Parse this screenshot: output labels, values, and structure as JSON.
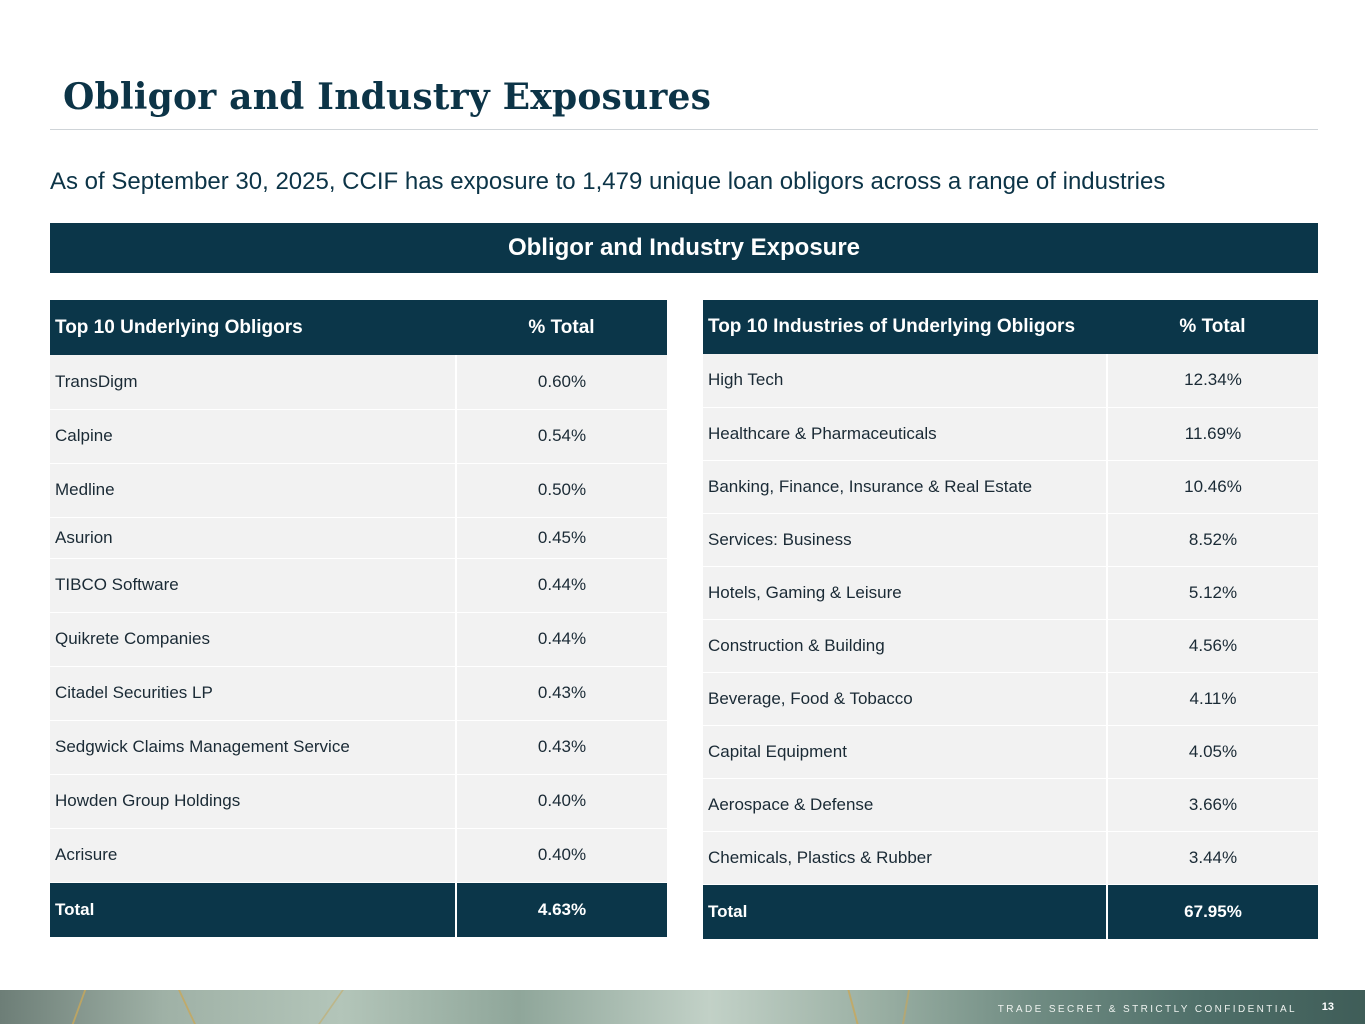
{
  "page": {
    "title": "Obligor and Industry Exposures",
    "subtitle": "As of September 30, 2025, CCIF has exposure to 1,479 unique loan obligors across a range of industries",
    "section_header": "Obligor and Industry Exposure"
  },
  "obligors": {
    "col_name": "Top 10 Underlying Obligors",
    "col_pct": "% Total",
    "rows": [
      {
        "name": "TransDigm",
        "pct": "0.60%"
      },
      {
        "name": "Calpine",
        "pct": "0.54%"
      },
      {
        "name": "Medline",
        "pct": "0.50%"
      },
      {
        "name": "Asurion",
        "pct": "0.45%"
      },
      {
        "name": "TIBCO Software",
        "pct": "0.44%"
      },
      {
        "name": "Quikrete Companies",
        "pct": "0.44%"
      },
      {
        "name": "Citadel Securities LP",
        "pct": "0.43%"
      },
      {
        "name": "Sedgwick Claims Management Service",
        "pct": "0.43%"
      },
      {
        "name": "Howden Group Holdings",
        "pct": "0.40%"
      },
      {
        "name": "Acrisure",
        "pct": "0.40%"
      }
    ],
    "total_label": "Total",
    "total_pct": "4.63%"
  },
  "industries": {
    "col_name": "Top 10 Industries of Underlying Obligors",
    "col_pct": "% Total",
    "rows": [
      {
        "name": "High Tech",
        "pct": "12.34%"
      },
      {
        "name": "Healthcare & Pharmaceuticals",
        "pct": "11.69%"
      },
      {
        "name": "Banking, Finance, Insurance & Real Estate",
        "pct": "10.46%"
      },
      {
        "name": "Services: Business",
        "pct": "8.52%"
      },
      {
        "name": "Hotels, Gaming & Leisure",
        "pct": "5.12%"
      },
      {
        "name": "Construction & Building",
        "pct": "4.56%"
      },
      {
        "name": "Beverage, Food & Tobacco",
        "pct": "4.11%"
      },
      {
        "name": "Capital Equipment",
        "pct": "4.05%"
      },
      {
        "name": "Aerospace & Defense",
        "pct": "3.66%"
      },
      {
        "name": "Chemicals, Plastics & Rubber",
        "pct": "3.44%"
      }
    ],
    "total_label": "Total",
    "total_pct": "67.95%"
  },
  "footer": {
    "confidential": "TRADE SECRET & STRICTLY CONFIDENTIAL",
    "page_number": "13"
  },
  "colors": {
    "navy": "#0b3649",
    "row_bg": "#f2f2f2"
  }
}
